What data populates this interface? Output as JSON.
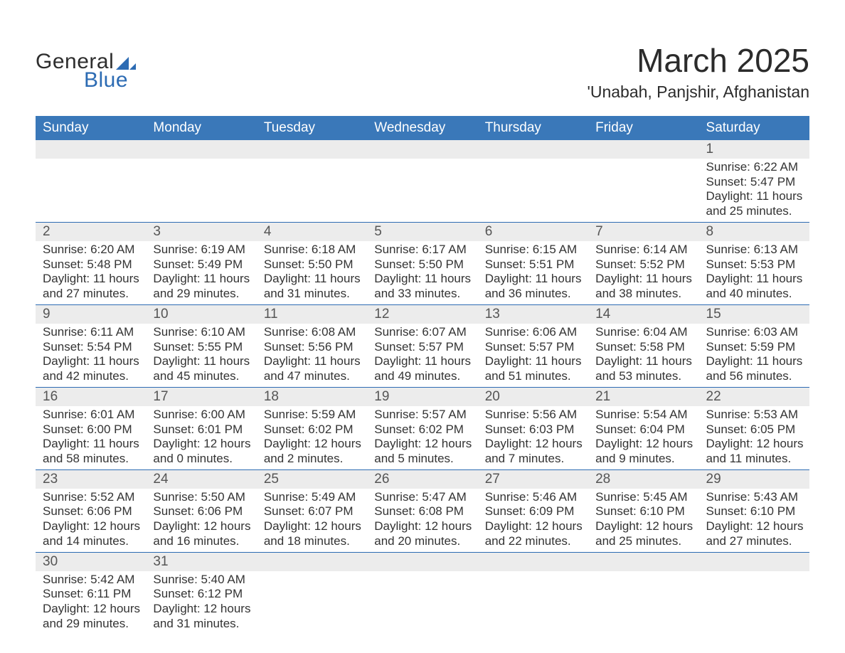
{
  "logo": {
    "word1": "General",
    "word2": "Blue",
    "shape_color": "#2c6bb3",
    "word1_color": "#2e2e2e",
    "word2_color": "#2c6bb3",
    "fontsize": 30
  },
  "title": {
    "month": "March 2025",
    "location": "'Unabah, Panjshir, Afghanistan",
    "month_fontsize": 46,
    "location_fontsize": 23,
    "text_color": "#2b2b2b"
  },
  "calendar_style": {
    "header_bg": "#3a78b9",
    "header_text_color": "#ffffff",
    "header_fontsize": 19,
    "daynum_bg": "#ececec",
    "daynum_color": "#555555",
    "daynum_fontsize": 19,
    "body_text_color": "#333333",
    "body_fontsize": 17,
    "row_divider_color": "#2c6bb3",
    "background_color": "#ffffff"
  },
  "day_labels": [
    "Sunday",
    "Monday",
    "Tuesday",
    "Wednesday",
    "Thursday",
    "Friday",
    "Saturday"
  ],
  "weeks": [
    [
      null,
      null,
      null,
      null,
      null,
      null,
      {
        "n": "1",
        "sr": "Sunrise: 6:22 AM",
        "ss": "Sunset: 5:47 PM",
        "d1": "Daylight: 11 hours",
        "d2": "and 25 minutes."
      }
    ],
    [
      {
        "n": "2",
        "sr": "Sunrise: 6:20 AM",
        "ss": "Sunset: 5:48 PM",
        "d1": "Daylight: 11 hours",
        "d2": "and 27 minutes."
      },
      {
        "n": "3",
        "sr": "Sunrise: 6:19 AM",
        "ss": "Sunset: 5:49 PM",
        "d1": "Daylight: 11 hours",
        "d2": "and 29 minutes."
      },
      {
        "n": "4",
        "sr": "Sunrise: 6:18 AM",
        "ss": "Sunset: 5:50 PM",
        "d1": "Daylight: 11 hours",
        "d2": "and 31 minutes."
      },
      {
        "n": "5",
        "sr": "Sunrise: 6:17 AM",
        "ss": "Sunset: 5:50 PM",
        "d1": "Daylight: 11 hours",
        "d2": "and 33 minutes."
      },
      {
        "n": "6",
        "sr": "Sunrise: 6:15 AM",
        "ss": "Sunset: 5:51 PM",
        "d1": "Daylight: 11 hours",
        "d2": "and 36 minutes."
      },
      {
        "n": "7",
        "sr": "Sunrise: 6:14 AM",
        "ss": "Sunset: 5:52 PM",
        "d1": "Daylight: 11 hours",
        "d2": "and 38 minutes."
      },
      {
        "n": "8",
        "sr": "Sunrise: 6:13 AM",
        "ss": "Sunset: 5:53 PM",
        "d1": "Daylight: 11 hours",
        "d2": "and 40 minutes."
      }
    ],
    [
      {
        "n": "9",
        "sr": "Sunrise: 6:11 AM",
        "ss": "Sunset: 5:54 PM",
        "d1": "Daylight: 11 hours",
        "d2": "and 42 minutes."
      },
      {
        "n": "10",
        "sr": "Sunrise: 6:10 AM",
        "ss": "Sunset: 5:55 PM",
        "d1": "Daylight: 11 hours",
        "d2": "and 45 minutes."
      },
      {
        "n": "11",
        "sr": "Sunrise: 6:08 AM",
        "ss": "Sunset: 5:56 PM",
        "d1": "Daylight: 11 hours",
        "d2": "and 47 minutes."
      },
      {
        "n": "12",
        "sr": "Sunrise: 6:07 AM",
        "ss": "Sunset: 5:57 PM",
        "d1": "Daylight: 11 hours",
        "d2": "and 49 minutes."
      },
      {
        "n": "13",
        "sr": "Sunrise: 6:06 AM",
        "ss": "Sunset: 5:57 PM",
        "d1": "Daylight: 11 hours",
        "d2": "and 51 minutes."
      },
      {
        "n": "14",
        "sr": "Sunrise: 6:04 AM",
        "ss": "Sunset: 5:58 PM",
        "d1": "Daylight: 11 hours",
        "d2": "and 53 minutes."
      },
      {
        "n": "15",
        "sr": "Sunrise: 6:03 AM",
        "ss": "Sunset: 5:59 PM",
        "d1": "Daylight: 11 hours",
        "d2": "and 56 minutes."
      }
    ],
    [
      {
        "n": "16",
        "sr": "Sunrise: 6:01 AM",
        "ss": "Sunset: 6:00 PM",
        "d1": "Daylight: 11 hours",
        "d2": "and 58 minutes."
      },
      {
        "n": "17",
        "sr": "Sunrise: 6:00 AM",
        "ss": "Sunset: 6:01 PM",
        "d1": "Daylight: 12 hours",
        "d2": "and 0 minutes."
      },
      {
        "n": "18",
        "sr": "Sunrise: 5:59 AM",
        "ss": "Sunset: 6:02 PM",
        "d1": "Daylight: 12 hours",
        "d2": "and 2 minutes."
      },
      {
        "n": "19",
        "sr": "Sunrise: 5:57 AM",
        "ss": "Sunset: 6:02 PM",
        "d1": "Daylight: 12 hours",
        "d2": "and 5 minutes."
      },
      {
        "n": "20",
        "sr": "Sunrise: 5:56 AM",
        "ss": "Sunset: 6:03 PM",
        "d1": "Daylight: 12 hours",
        "d2": "and 7 minutes."
      },
      {
        "n": "21",
        "sr": "Sunrise: 5:54 AM",
        "ss": "Sunset: 6:04 PM",
        "d1": "Daylight: 12 hours",
        "d2": "and 9 minutes."
      },
      {
        "n": "22",
        "sr": "Sunrise: 5:53 AM",
        "ss": "Sunset: 6:05 PM",
        "d1": "Daylight: 12 hours",
        "d2": "and 11 minutes."
      }
    ],
    [
      {
        "n": "23",
        "sr": "Sunrise: 5:52 AM",
        "ss": "Sunset: 6:06 PM",
        "d1": "Daylight: 12 hours",
        "d2": "and 14 minutes."
      },
      {
        "n": "24",
        "sr": "Sunrise: 5:50 AM",
        "ss": "Sunset: 6:06 PM",
        "d1": "Daylight: 12 hours",
        "d2": "and 16 minutes."
      },
      {
        "n": "25",
        "sr": "Sunrise: 5:49 AM",
        "ss": "Sunset: 6:07 PM",
        "d1": "Daylight: 12 hours",
        "d2": "and 18 minutes."
      },
      {
        "n": "26",
        "sr": "Sunrise: 5:47 AM",
        "ss": "Sunset: 6:08 PM",
        "d1": "Daylight: 12 hours",
        "d2": "and 20 minutes."
      },
      {
        "n": "27",
        "sr": "Sunrise: 5:46 AM",
        "ss": "Sunset: 6:09 PM",
        "d1": "Daylight: 12 hours",
        "d2": "and 22 minutes."
      },
      {
        "n": "28",
        "sr": "Sunrise: 5:45 AM",
        "ss": "Sunset: 6:10 PM",
        "d1": "Daylight: 12 hours",
        "d2": "and 25 minutes."
      },
      {
        "n": "29",
        "sr": "Sunrise: 5:43 AM",
        "ss": "Sunset: 6:10 PM",
        "d1": "Daylight: 12 hours",
        "d2": "and 27 minutes."
      }
    ],
    [
      {
        "n": "30",
        "sr": "Sunrise: 5:42 AM",
        "ss": "Sunset: 6:11 PM",
        "d1": "Daylight: 12 hours",
        "d2": "and 29 minutes."
      },
      {
        "n": "31",
        "sr": "Sunrise: 5:40 AM",
        "ss": "Sunset: 6:12 PM",
        "d1": "Daylight: 12 hours",
        "d2": "and 31 minutes."
      },
      null,
      null,
      null,
      null,
      null
    ]
  ]
}
